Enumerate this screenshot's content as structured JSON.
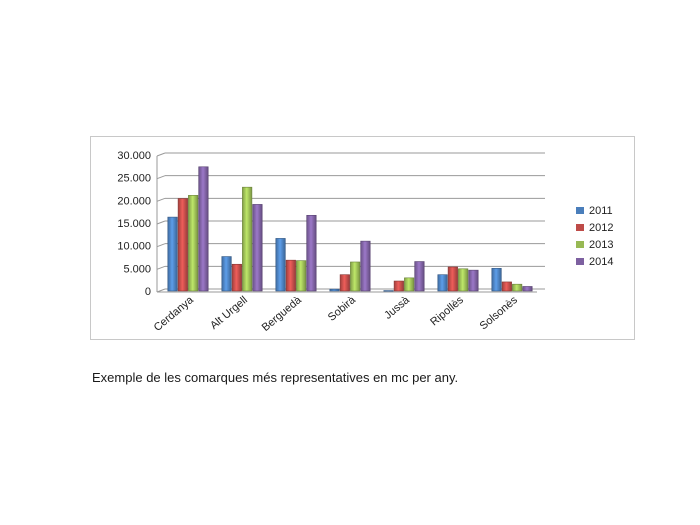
{
  "caption": "Exemple de les comarques més representatives en mc per any.",
  "chart_data": {
    "type": "bar",
    "categories": [
      "Cerdanya",
      "Alt Urgell",
      "Berguedà",
      "Sobirà",
      "Jussà",
      "Ripollès",
      "Solsonès"
    ],
    "series": [
      {
        "name": "2011",
        "color": "#4a7ebb",
        "values": [
          16300,
          7600,
          11600,
          400,
          100,
          3600,
          5000
        ]
      },
      {
        "name": "2012",
        "color": "#be4b48",
        "values": [
          20400,
          5900,
          6800,
          3600,
          2200,
          5300,
          2000
        ]
      },
      {
        "name": "2013",
        "color": "#98b954",
        "values": [
          21100,
          22900,
          6700,
          6400,
          2900,
          4900,
          1500
        ]
      },
      {
        "name": "2014",
        "color": "#7d60a0",
        "values": [
          27400,
          19100,
          16700,
          11000,
          6500,
          4600,
          1000
        ]
      }
    ],
    "y_tick_labels": [
      "0",
      "5.000",
      "10.000",
      "15.000",
      "20.000",
      "25.000",
      "30.000"
    ],
    "y_tick_values": [
      0,
      5000,
      10000,
      15000,
      20000,
      25000,
      30000
    ],
    "ylim": [
      0,
      30000
    ],
    "grid": true,
    "legend_position": "right",
    "title": "",
    "xlabel": "",
    "ylabel": ""
  }
}
